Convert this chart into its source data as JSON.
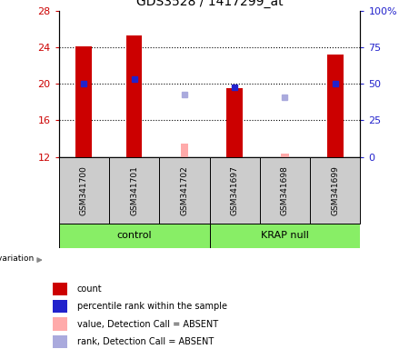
{
  "title": "GDS3528 / 1417299_at",
  "samples": [
    "GSM341700",
    "GSM341701",
    "GSM341702",
    "GSM341697",
    "GSM341698",
    "GSM341699"
  ],
  "ylim_left": [
    12,
    28
  ],
  "ylim_right": [
    0,
    100
  ],
  "yticks_left": [
    12,
    16,
    20,
    24,
    28
  ],
  "yticks_right": [
    0,
    25,
    50,
    75,
    100
  ],
  "ytick_labels_right": [
    "0",
    "25",
    "50",
    "75",
    "100%"
  ],
  "red_bars": {
    "GSM341700": 24.1,
    "GSM341701": 25.3,
    "GSM341702": null,
    "GSM341697": 19.5,
    "GSM341698": null,
    "GSM341699": 23.2
  },
  "pink_bars": {
    "GSM341700": null,
    "GSM341701": null,
    "GSM341702": 13.5,
    "GSM341697": null,
    "GSM341698": 12.35,
    "GSM341699": null
  },
  "blue_squares": {
    "GSM341700": 20.0,
    "GSM341701": 20.5,
    "GSM341702": null,
    "GSM341697": 19.6,
    "GSM341698": null,
    "GSM341699": 20.0
  },
  "light_blue_squares": {
    "GSM341700": null,
    "GSM341701": null,
    "GSM341702": 18.8,
    "GSM341697": null,
    "GSM341698": 18.5,
    "GSM341699": null
  },
  "bar_color": "#cc0000",
  "pink_color": "#ffaaaa",
  "blue_color": "#2222cc",
  "light_blue_color": "#aaaadd",
  "legend_items": [
    {
      "label": "count",
      "color": "#cc0000"
    },
    {
      "label": "percentile rank within the sample",
      "color": "#2222cc"
    },
    {
      "label": "value, Detection Call = ABSENT",
      "color": "#ffaaaa"
    },
    {
      "label": "rank, Detection Call = ABSENT",
      "color": "#aaaadd"
    }
  ],
  "group_label_color": "#88ee66",
  "sample_box_color": "#cccccc"
}
